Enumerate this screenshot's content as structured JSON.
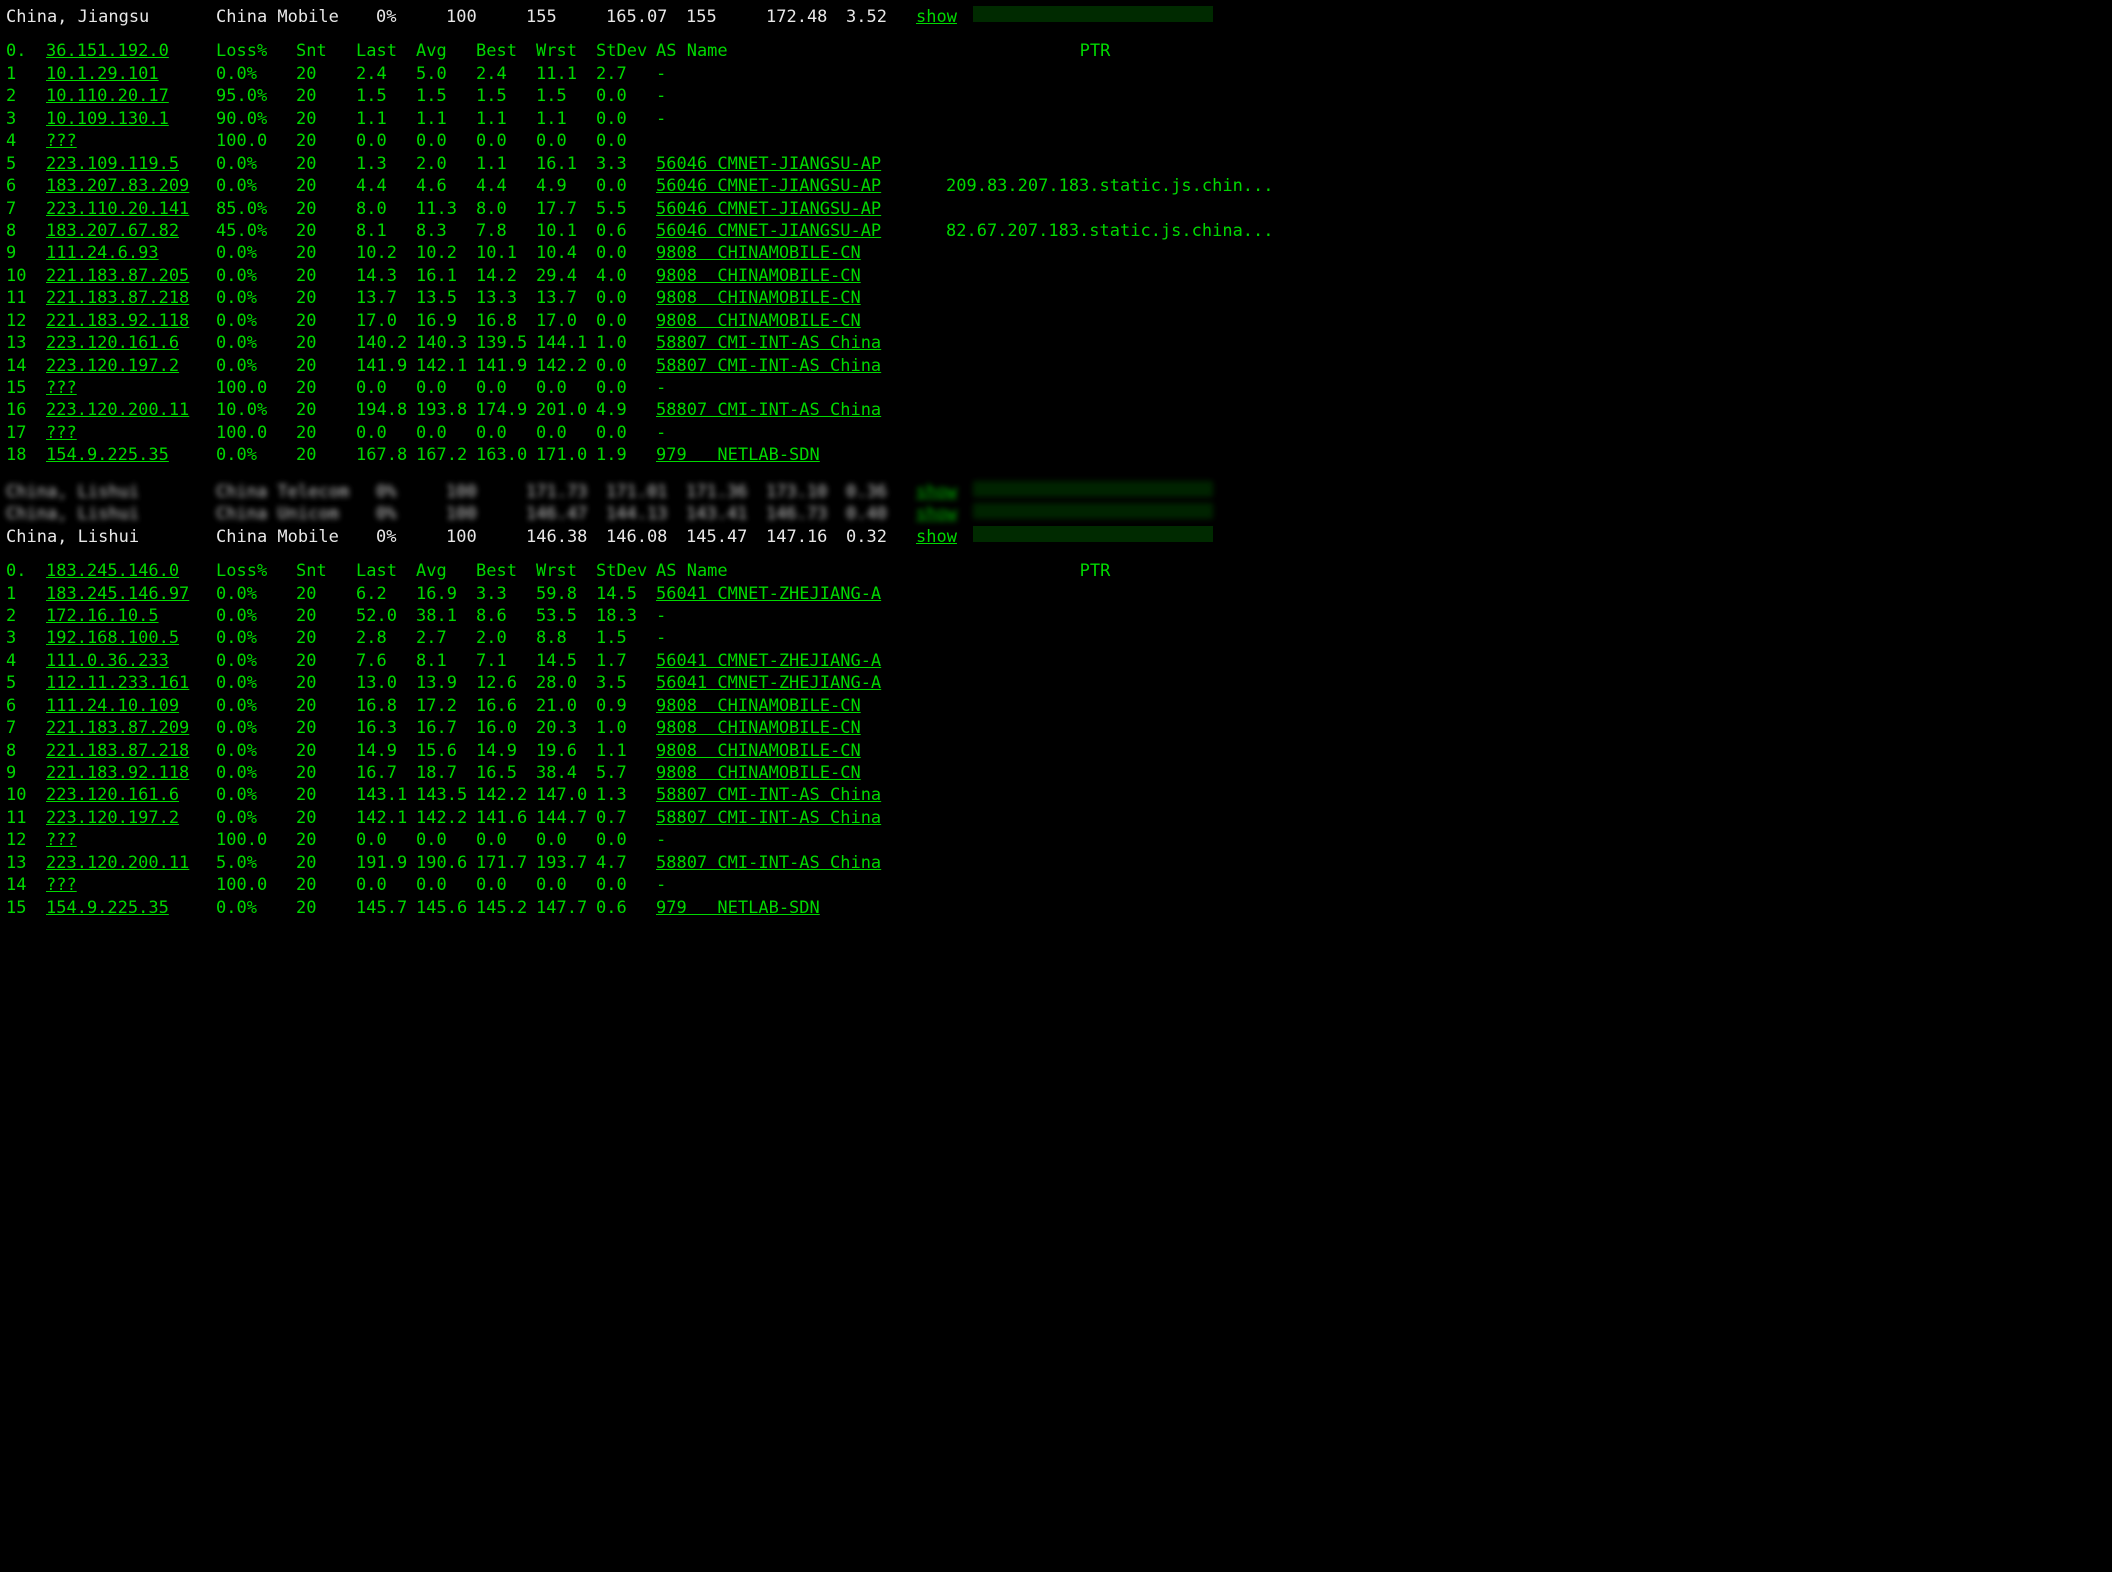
{
  "colors": {
    "bg": "#000000",
    "green": "#00d800",
    "white": "#e0e0e0",
    "bar_bg": "#002a00",
    "bar_fill": "#00e000"
  },
  "sections": [
    {
      "summary": {
        "location": "China, Jiangsu",
        "carrier": "China Mobile",
        "loss": "0%",
        "snt": "100",
        "v1": "155",
        "v2": "165.07",
        "v3": "155",
        "v4": "172.48",
        "v5": "3.52",
        "show": "show",
        "bar_pct": 100
      },
      "headers": {
        "n": "0.",
        "ip": "36.151.192.0",
        "loss": "Loss%",
        "snt": "Snt",
        "last": "Last",
        "avg": "Avg",
        "best": "Best",
        "wrst": "Wrst",
        "stdev": "StDev",
        "as": "AS Name",
        "ptr": "PTR"
      },
      "rows": [
        {
          "n": "1",
          "ip": "10.1.29.101",
          "loss": "0.0%",
          "snt": "20",
          "last": "2.4",
          "avg": "5.0",
          "best": "2.4",
          "wrst": "11.1",
          "stdev": "2.7",
          "as": "-",
          "ptr": ""
        },
        {
          "n": "2",
          "ip": "10.110.20.17",
          "loss": "95.0%",
          "snt": "20",
          "last": "1.5",
          "avg": "1.5",
          "best": "1.5",
          "wrst": "1.5",
          "stdev": "0.0",
          "as": "-",
          "ptr": ""
        },
        {
          "n": "3",
          "ip": "10.109.130.1",
          "loss": "90.0%",
          "snt": "20",
          "last": "1.1",
          "avg": "1.1",
          "best": "1.1",
          "wrst": "1.1",
          "stdev": "0.0",
          "as": "-",
          "ptr": ""
        },
        {
          "n": "4",
          "ip": "???",
          "loss": "100.0",
          "snt": "20",
          "last": "0.0",
          "avg": "0.0",
          "best": "0.0",
          "wrst": "0.0",
          "stdev": "0.0",
          "as": "",
          "ptr": ""
        },
        {
          "n": "5",
          "ip": "223.109.119.5",
          "loss": "0.0%",
          "snt": "20",
          "last": "1.3",
          "avg": "2.0",
          "best": "1.1",
          "wrst": "16.1",
          "stdev": "3.3",
          "as": "56046 CMNET-JIANGSU-AP",
          "ptr": ""
        },
        {
          "n": "6",
          "ip": "183.207.83.209",
          "loss": "0.0%",
          "snt": "20",
          "last": "4.4",
          "avg": "4.6",
          "best": "4.4",
          "wrst": "4.9",
          "stdev": "0.0",
          "as": "56046 CMNET-JIANGSU-AP",
          "ptr": "209.83.207.183.static.js.chin..."
        },
        {
          "n": "7",
          "ip": "223.110.20.141",
          "loss": "85.0%",
          "snt": "20",
          "last": "8.0",
          "avg": "11.3",
          "best": "8.0",
          "wrst": "17.7",
          "stdev": "5.5",
          "as": "56046 CMNET-JIANGSU-AP",
          "ptr": ""
        },
        {
          "n": "8",
          "ip": "183.207.67.82",
          "loss": "45.0%",
          "snt": "20",
          "last": "8.1",
          "avg": "8.3",
          "best": "7.8",
          "wrst": "10.1",
          "stdev": "0.6",
          "as": "56046 CMNET-JIANGSU-AP",
          "ptr": "82.67.207.183.static.js.china..."
        },
        {
          "n": "9",
          "ip": "111.24.6.93",
          "loss": "0.0%",
          "snt": "20",
          "last": "10.2",
          "avg": "10.2",
          "best": "10.1",
          "wrst": "10.4",
          "stdev": "0.0",
          "as": "9808  CHINAMOBILE-CN",
          "ptr": ""
        },
        {
          "n": "10",
          "ip": "221.183.87.205",
          "loss": "0.0%",
          "snt": "20",
          "last": "14.3",
          "avg": "16.1",
          "best": "14.2",
          "wrst": "29.4",
          "stdev": "4.0",
          "as": "9808  CHINAMOBILE-CN",
          "ptr": ""
        },
        {
          "n": "11",
          "ip": "221.183.87.218",
          "loss": "0.0%",
          "snt": "20",
          "last": "13.7",
          "avg": "13.5",
          "best": "13.3",
          "wrst": "13.7",
          "stdev": "0.0",
          "as": "9808  CHINAMOBILE-CN",
          "ptr": ""
        },
        {
          "n": "12",
          "ip": "221.183.92.118",
          "loss": "0.0%",
          "snt": "20",
          "last": "17.0",
          "avg": "16.9",
          "best": "16.8",
          "wrst": "17.0",
          "stdev": "0.0",
          "as": "9808  CHINAMOBILE-CN",
          "ptr": ""
        },
        {
          "n": "13",
          "ip": "223.120.161.6",
          "loss": "0.0%",
          "snt": "20",
          "last": "140.2",
          "avg": "140.3",
          "best": "139.5",
          "wrst": "144.1",
          "stdev": "1.0",
          "as": "58807 CMI-INT-AS China",
          "ptr": ""
        },
        {
          "n": "14",
          "ip": "223.120.197.2",
          "loss": "0.0%",
          "snt": "20",
          "last": "141.9",
          "avg": "142.1",
          "best": "141.9",
          "wrst": "142.2",
          "stdev": "0.0",
          "as": "58807 CMI-INT-AS China",
          "ptr": ""
        },
        {
          "n": "15",
          "ip": "???",
          "loss": "100.0",
          "snt": "20",
          "last": "0.0",
          "avg": "0.0",
          "best": "0.0",
          "wrst": "0.0",
          "stdev": "0.0",
          "as": "-",
          "ptr": ""
        },
        {
          "n": "16",
          "ip": "223.120.200.11",
          "loss": "10.0%",
          "snt": "20",
          "last": "194.8",
          "avg": "193.8",
          "best": "174.9",
          "wrst": "201.0",
          "stdev": "4.9",
          "as": "58807 CMI-INT-AS China",
          "ptr": ""
        },
        {
          "n": "17",
          "ip": "???",
          "loss": "100.0",
          "snt": "20",
          "last": "0.0",
          "avg": "0.0",
          "best": "0.0",
          "wrst": "0.0",
          "stdev": "0.0",
          "as": "-",
          "ptr": ""
        },
        {
          "n": "18",
          "ip": "154.9.225.35",
          "loss": "0.0%",
          "snt": "20",
          "last": "167.8",
          "avg": "167.2",
          "best": "163.0",
          "wrst": "171.0",
          "stdev": "1.9",
          "as": "979   NETLAB-SDN",
          "ptr": ""
        }
      ]
    },
    {
      "blurred": [
        {
          "location": "China, Lishui",
          "carrier": "China Telecom",
          "loss": "0%",
          "snt": "100",
          "v1": "171.73",
          "v2": "171.01",
          "v3": "171.36",
          "v4": "173.10",
          "v5": "0.36",
          "show": "show",
          "bar_pct": 100
        },
        {
          "location": "China, Lishui",
          "carrier": "China Unicom",
          "loss": "0%",
          "snt": "100",
          "v1": "146.47",
          "v2": "144.13",
          "v3": "143.41",
          "v4": "146.73",
          "v5": "0.40",
          "show": "show",
          "bar_pct": 100
        }
      ],
      "summary": {
        "location": "China, Lishui",
        "carrier": "China Mobile",
        "loss": "0%",
        "snt": "100",
        "v1": "146.38",
        "v2": "146.08",
        "v3": "145.47",
        "v4": "147.16",
        "v5": "0.32",
        "show": "show",
        "bar_pct": 100
      },
      "headers": {
        "n": "0.",
        "ip": "183.245.146.0",
        "loss": "Loss%",
        "snt": "Snt",
        "last": "Last",
        "avg": "Avg",
        "best": "Best",
        "wrst": "Wrst",
        "stdev": "StDev",
        "as": "AS Name",
        "ptr": "PTR"
      },
      "rows": [
        {
          "n": "1",
          "ip": "183.245.146.97",
          "loss": "0.0%",
          "snt": "20",
          "last": "6.2",
          "avg": "16.9",
          "best": "3.3",
          "wrst": "59.8",
          "stdev": "14.5",
          "as": "56041 CMNET-ZHEJIANG-A",
          "ptr": ""
        },
        {
          "n": "2",
          "ip": "172.16.10.5",
          "loss": "0.0%",
          "snt": "20",
          "last": "52.0",
          "avg": "38.1",
          "best": "8.6",
          "wrst": "53.5",
          "stdev": "18.3",
          "as": "-",
          "ptr": ""
        },
        {
          "n": "3",
          "ip": "192.168.100.5",
          "loss": "0.0%",
          "snt": "20",
          "last": "2.8",
          "avg": "2.7",
          "best": "2.0",
          "wrst": "8.8",
          "stdev": "1.5",
          "as": "-",
          "ptr": ""
        },
        {
          "n": "4",
          "ip": "111.0.36.233",
          "loss": "0.0%",
          "snt": "20",
          "last": "7.6",
          "avg": "8.1",
          "best": "7.1",
          "wrst": "14.5",
          "stdev": "1.7",
          "as": "56041 CMNET-ZHEJIANG-A",
          "ptr": ""
        },
        {
          "n": "5",
          "ip": "112.11.233.161",
          "loss": "0.0%",
          "snt": "20",
          "last": "13.0",
          "avg": "13.9",
          "best": "12.6",
          "wrst": "28.0",
          "stdev": "3.5",
          "as": "56041 CMNET-ZHEJIANG-A",
          "ptr": ""
        },
        {
          "n": "6",
          "ip": "111.24.10.109",
          "loss": "0.0%",
          "snt": "20",
          "last": "16.8",
          "avg": "17.2",
          "best": "16.6",
          "wrst": "21.0",
          "stdev": "0.9",
          "as": "9808  CHINAMOBILE-CN",
          "ptr": ""
        },
        {
          "n": "7",
          "ip": "221.183.87.209",
          "loss": "0.0%",
          "snt": "20",
          "last": "16.3",
          "avg": "16.7",
          "best": "16.0",
          "wrst": "20.3",
          "stdev": "1.0",
          "as": "9808  CHINAMOBILE-CN",
          "ptr": ""
        },
        {
          "n": "8",
          "ip": "221.183.87.218",
          "loss": "0.0%",
          "snt": "20",
          "last": "14.9",
          "avg": "15.6",
          "best": "14.9",
          "wrst": "19.6",
          "stdev": "1.1",
          "as": "9808  CHINAMOBILE-CN",
          "ptr": ""
        },
        {
          "n": "9",
          "ip": "221.183.92.118",
          "loss": "0.0%",
          "snt": "20",
          "last": "16.7",
          "avg": "18.7",
          "best": "16.5",
          "wrst": "38.4",
          "stdev": "5.7",
          "as": "9808  CHINAMOBILE-CN",
          "ptr": ""
        },
        {
          "n": "10",
          "ip": "223.120.161.6",
          "loss": "0.0%",
          "snt": "20",
          "last": "143.1",
          "avg": "143.5",
          "best": "142.2",
          "wrst": "147.0",
          "stdev": "1.3",
          "as": "58807 CMI-INT-AS China",
          "ptr": ""
        },
        {
          "n": "11",
          "ip": "223.120.197.2",
          "loss": "0.0%",
          "snt": "20",
          "last": "142.1",
          "avg": "142.2",
          "best": "141.6",
          "wrst": "144.7",
          "stdev": "0.7",
          "as": "58807 CMI-INT-AS China",
          "ptr": ""
        },
        {
          "n": "12",
          "ip": "???",
          "loss": "100.0",
          "snt": "20",
          "last": "0.0",
          "avg": "0.0",
          "best": "0.0",
          "wrst": "0.0",
          "stdev": "0.0",
          "as": "-",
          "ptr": ""
        },
        {
          "n": "13",
          "ip": "223.120.200.11",
          "loss": "5.0%",
          "snt": "20",
          "last": "191.9",
          "avg": "190.6",
          "best": "171.7",
          "wrst": "193.7",
          "stdev": "4.7",
          "as": "58807 CMI-INT-AS China",
          "ptr": ""
        },
        {
          "n": "14",
          "ip": "???",
          "loss": "100.0",
          "snt": "20",
          "last": "0.0",
          "avg": "0.0",
          "best": "0.0",
          "wrst": "0.0",
          "stdev": "0.0",
          "as": "-",
          "ptr": ""
        },
        {
          "n": "15",
          "ip": "154.9.225.35",
          "loss": "0.0%",
          "snt": "20",
          "last": "145.7",
          "avg": "145.6",
          "best": "145.2",
          "wrst": "147.7",
          "stdev": "0.6",
          "as": "979   NETLAB-SDN",
          "ptr": ""
        }
      ]
    }
  ]
}
